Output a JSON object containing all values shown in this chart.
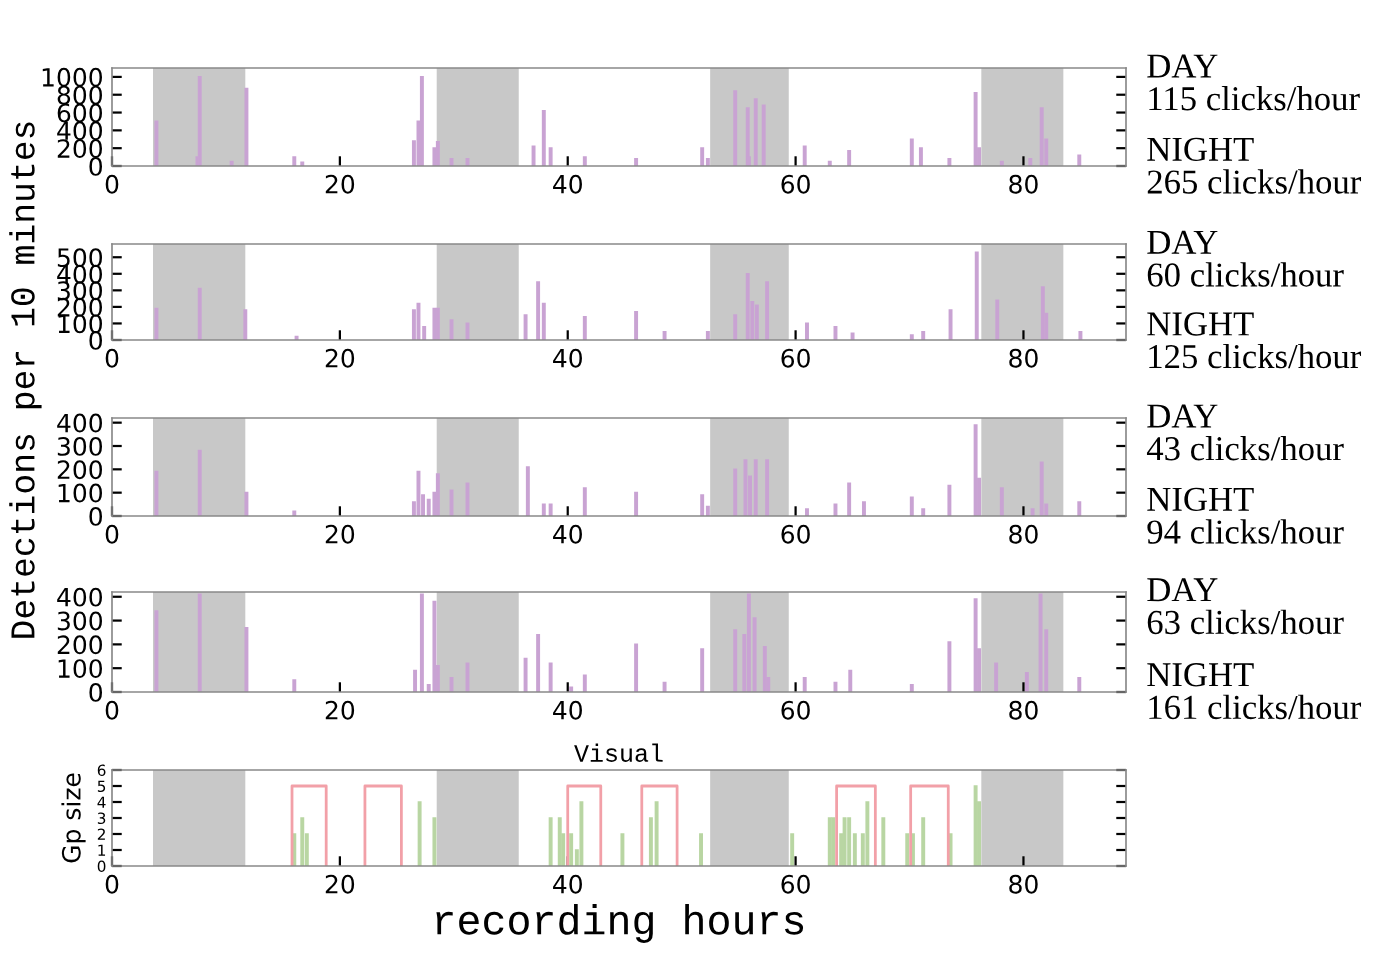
{
  "chart_data": [
    {
      "type": "bar",
      "xlim": [
        0,
        89
      ],
      "xticks": [
        0,
        20,
        40,
        60,
        80
      ],
      "ylim": [
        0,
        1100
      ],
      "yticks": [
        0,
        200,
        400,
        600,
        800,
        1000
      ],
      "grid": false,
      "bands": [
        {
          "axis": "x",
          "from": 3.6,
          "to": 11.7,
          "color": "#c8c8c8"
        },
        {
          "axis": "x",
          "from": 28.5,
          "to": 35.7,
          "color": "#c8c8c8"
        },
        {
          "axis": "x",
          "from": 52.5,
          "to": 59.4,
          "color": "#c8c8c8"
        },
        {
          "axis": "x",
          "from": 76.3,
          "to": 83.5,
          "color": "#c8c8c8"
        }
      ],
      "annotations": [
        "DAY\n115 clicks/hour",
        "NIGHT\n265 clicks/hour"
      ],
      "series": [
        {
          "color": "#c9a3d3",
          "x": [
            3.9,
            7.5,
            7.7,
            10.5,
            11.8,
            16.0,
            16.7,
            26.5,
            26.9,
            27.2,
            28.3,
            28.6,
            29.8,
            31.2,
            37.0,
            37.9,
            38.5,
            41.5,
            46.0,
            51.8,
            52.3,
            54.7,
            55.8,
            55.9,
            56.5,
            57.2,
            60.8,
            63.0,
            64.7,
            70.2,
            71.0,
            73.5,
            75.8,
            76.1,
            78.1,
            80.6,
            81.6,
            82.0,
            84.9
          ],
          "values": [
            500,
            100,
            1000,
            50,
            870,
            100,
            40,
            280,
            500,
            1000,
            200,
            270,
            80,
            80,
            220,
            620,
            200,
            100,
            80,
            200,
            80,
            840,
            650,
            100,
            750,
            680,
            220,
            50,
            170,
            300,
            200,
            80,
            820,
            200,
            50,
            80,
            650,
            300,
            120
          ]
        }
      ]
    },
    {
      "type": "bar",
      "xlim": [
        0,
        89
      ],
      "xticks": [
        0,
        20,
        40,
        60,
        80
      ],
      "ylim": [
        0,
        580
      ],
      "yticks": [
        0,
        100,
        200,
        300,
        400,
        500
      ],
      "grid": false,
      "ylabel": "Detections per 10 minutes",
      "bands": [
        {
          "axis": "x",
          "from": 3.6,
          "to": 11.7,
          "color": "#c8c8c8"
        },
        {
          "axis": "x",
          "from": 28.5,
          "to": 35.7,
          "color": "#c8c8c8"
        },
        {
          "axis": "x",
          "from": 52.5,
          "to": 59.4,
          "color": "#c8c8c8"
        },
        {
          "axis": "x",
          "from": 76.3,
          "to": 83.5,
          "color": "#c8c8c8"
        }
      ],
      "annotations": [
        "DAY\n60 clicks/hour",
        "NIGHT\n125 clicks/hour"
      ],
      "series": [
        {
          "color": "#c9a3d3",
          "x": [
            3.9,
            7.7,
            11.7,
            16.2,
            26.5,
            26.9,
            27.4,
            28.3,
            28.6,
            29.8,
            31.2,
            36.3,
            37.4,
            37.9,
            41.5,
            46.0,
            48.5,
            52.3,
            54.7,
            55.8,
            56.2,
            56.6,
            57.5,
            61.0,
            63.5,
            65.0,
            70.2,
            71.2,
            73.6,
            75.9,
            77.7,
            81.7,
            82.0,
            85.0
          ],
          "values": [
            190,
            310,
            180,
            20,
            180,
            220,
            80,
            190,
            190,
            120,
            100,
            150,
            350,
            220,
            140,
            170,
            50,
            50,
            150,
            400,
            230,
            210,
            350,
            100,
            80,
            40,
            30,
            50,
            180,
            530,
            240,
            320,
            160,
            50
          ]
        }
      ]
    },
    {
      "type": "bar",
      "xlim": [
        0,
        89
      ],
      "xticks": [
        0,
        20,
        40,
        60,
        80
      ],
      "ylim": [
        0,
        420
      ],
      "yticks": [
        0,
        100,
        200,
        300,
        400
      ],
      "grid": false,
      "bands": [
        {
          "axis": "x",
          "from": 3.6,
          "to": 11.7,
          "color": "#c8c8c8"
        },
        {
          "axis": "x",
          "from": 28.5,
          "to": 35.7,
          "color": "#c8c8c8"
        },
        {
          "axis": "x",
          "from": 52.5,
          "to": 59.4,
          "color": "#c8c8c8"
        },
        {
          "axis": "x",
          "from": 76.3,
          "to": 83.5,
          "color": "#c8c8c8"
        }
      ],
      "annotations": [
        "DAY\n43 clicks/hour",
        "NIGHT\n94 clicks/hour"
      ],
      "series": [
        {
          "color": "#c9a3d3",
          "x": [
            3.9,
            7.7,
            11.8,
            16.0,
            26.5,
            26.9,
            27.3,
            27.8,
            28.3,
            28.6,
            29.8,
            31.2,
            36.5,
            37.9,
            38.5,
            41.5,
            46.0,
            51.8,
            52.3,
            54.7,
            55.6,
            56.0,
            56.5,
            57.5,
            61.0,
            63.5,
            64.7,
            66.0,
            70.2,
            71.2,
            73.5,
            75.8,
            76.1,
            78.1,
            80.8,
            81.6,
            82.0,
            84.9
          ],
          "values": [
            190,
            280,
            100,
            20,
            60,
            190,
            90,
            70,
            100,
            180,
            110,
            140,
            210,
            50,
            50,
            120,
            100,
            90,
            40,
            200,
            240,
            170,
            240,
            240,
            30,
            50,
            140,
            60,
            80,
            30,
            130,
            390,
            160,
            120,
            30,
            230,
            50,
            60
          ]
        }
      ]
    },
    {
      "type": "bar",
      "xlim": [
        0,
        89
      ],
      "xticks": [
        0,
        20,
        40,
        60,
        80
      ],
      "ylim": [
        0,
        420
      ],
      "yticks": [
        0,
        100,
        200,
        300,
        400
      ],
      "grid": false,
      "bands": [
        {
          "axis": "x",
          "from": 3.6,
          "to": 11.7,
          "color": "#c8c8c8"
        },
        {
          "axis": "x",
          "from": 28.5,
          "to": 35.7,
          "color": "#c8c8c8"
        },
        {
          "axis": "x",
          "from": 52.5,
          "to": 59.4,
          "color": "#c8c8c8"
        },
        {
          "axis": "x",
          "from": 76.3,
          "to": 83.5,
          "color": "#c8c8c8"
        }
      ],
      "annotations": [
        "DAY\n63 clicks/hour",
        "NIGHT\n161 clicks/hour"
      ],
      "series": [
        {
          "color": "#c9a3d3",
          "x": [
            3.9,
            7.7,
            11.8,
            16.0,
            26.6,
            27.2,
            27.8,
            28.3,
            28.6,
            29.8,
            31.2,
            36.3,
            37.4,
            38.5,
            40.3,
            41.5,
            46.0,
            48.5,
            51.8,
            54.7,
            55.5,
            55.9,
            56.4,
            57.3,
            57.6,
            60.8,
            63.5,
            64.8,
            70.2,
            73.5,
            75.8,
            76.1,
            77.6,
            80.3,
            81.5,
            82.0,
            84.9
          ],
          "values": [
            340,
            410,
            270,
            50,
            90,
            410,
            30,
            380,
            110,
            60,
            120,
            140,
            240,
            120,
            20,
            70,
            200,
            40,
            180,
            260,
            240,
            410,
            310,
            190,
            60,
            60,
            40,
            90,
            30,
            210,
            390,
            180,
            120,
            80,
            410,
            260,
            60
          ]
        }
      ]
    },
    {
      "type": "bar",
      "title": "Visual",
      "xlabel": "recording hours",
      "ylabel": "Gp size",
      "xlim": [
        0,
        89
      ],
      "xticks": [
        0,
        20,
        40,
        60,
        80
      ],
      "ylim": [
        0,
        6
      ],
      "yticks": [
        0,
        1,
        2,
        3,
        4,
        5,
        6
      ],
      "grid": false,
      "bands": [
        {
          "axis": "x",
          "from": 3.6,
          "to": 11.7,
          "color": "#c8c8c8"
        },
        {
          "axis": "x",
          "from": 28.5,
          "to": 35.7,
          "color": "#c8c8c8"
        },
        {
          "axis": "x",
          "from": 52.5,
          "to": 59.4,
          "color": "#c8c8c8"
        },
        {
          "axis": "x",
          "from": 76.3,
          "to": 83.5,
          "color": "#c8c8c8"
        }
      ],
      "series": [
        {
          "type": "bar",
          "color": "#b9d6a3",
          "x": [
            16.0,
            16.7,
            17.1,
            27.0,
            28.3,
            38.5,
            39.3,
            39.6,
            40.3,
            40.8,
            41.2,
            44.8,
            47.3,
            47.8,
            51.7,
            59.7,
            63.0,
            63.3,
            64.0,
            64.3,
            64.7,
            65.2,
            65.9,
            66.3,
            67.7,
            69.8,
            70.3,
            71.2,
            73.6,
            75.8,
            76.1
          ],
          "values": [
            2,
            3,
            2,
            4,
            3,
            3,
            3,
            2,
            2,
            1,
            4,
            2,
            3,
            4,
            2,
            2,
            3,
            3,
            2,
            3,
            3,
            2,
            2,
            4,
            3,
            2,
            2,
            3,
            2,
            5,
            4
          ]
        },
        {
          "type": "line",
          "color": "#f2a0a8",
          "x": [
            15.8,
            15.8,
            18.8,
            18.8,
            null,
            22.2,
            22.2,
            25.4,
            25.4,
            null,
            40.0,
            40.0,
            42.9,
            42.9,
            null,
            46.5,
            46.5,
            49.6,
            49.6,
            null,
            63.6,
            63.6,
            67.0,
            67.0,
            null,
            70.1,
            70.1,
            73.4,
            73.4
          ],
          "values": [
            0,
            5,
            5,
            0,
            null,
            0,
            5,
            5,
            0,
            null,
            0,
            5,
            5,
            0,
            null,
            0,
            5,
            5,
            0,
            null,
            0,
            5,
            5,
            0,
            null,
            0,
            5,
            5,
            0
          ]
        }
      ]
    }
  ]
}
